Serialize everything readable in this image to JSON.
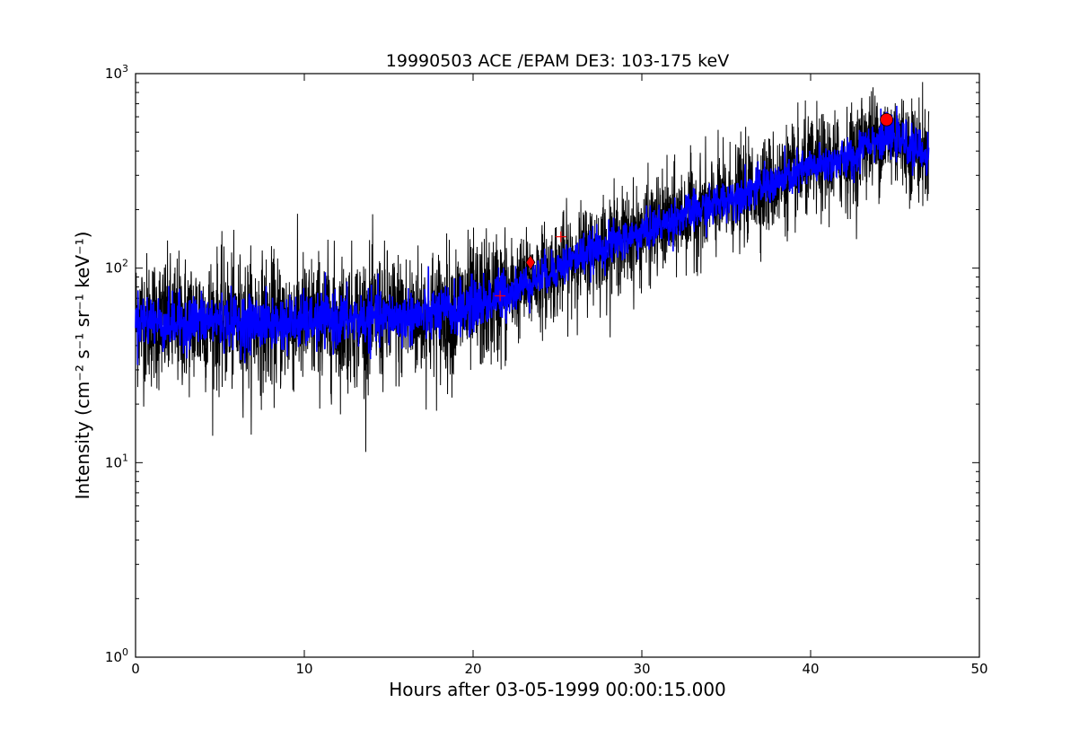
{
  "chart_data": {
    "type": "line",
    "title": "19990503 ACE /EPAM DE3: 103-175 keV",
    "xlabel": "Hours after 03-05-1999 00:00:15.000",
    "ylabel": "Intensity (cm⁻² s⁻¹ sr⁻¹ keV⁻¹)",
    "xlim": [
      0,
      50
    ],
    "ylim": [
      1,
      1000
    ],
    "yscale": "log",
    "grid": false,
    "x_ticks": [
      0,
      10,
      20,
      30,
      40,
      50
    ],
    "x_tick_labels": [
      "0",
      "10",
      "20",
      "30",
      "40",
      "50"
    ],
    "y_ticks": [
      1,
      10,
      100,
      1000
    ],
    "y_tick_labels": [
      {
        "base": "10",
        "exp": "0"
      },
      {
        "base": "10",
        "exp": "1"
      },
      {
        "base": "10",
        "exp": "2"
      },
      {
        "base": "10",
        "exp": "3"
      }
    ],
    "series": [
      {
        "color": "#000000",
        "style": "noisy-line",
        "x": [
          0,
          2,
          4,
          6,
          8,
          10,
          12,
          14,
          16,
          18,
          20,
          21,
          22,
          23,
          24,
          25,
          26,
          27,
          28,
          29,
          30,
          31,
          32,
          33,
          34,
          35,
          36,
          37,
          38,
          39,
          40,
          41,
          42,
          42.8,
          43,
          44,
          45,
          46,
          47
        ],
        "y": [
          55,
          52,
          54,
          53,
          52,
          53,
          54,
          55,
          56,
          58,
          64,
          68,
          74,
          82,
          90,
          100,
          112,
          122,
          132,
          140,
          150,
          165,
          180,
          195,
          205,
          225,
          245,
          260,
          275,
          300,
          330,
          345,
          360,
          375,
          450,
          460,
          470,
          420,
          380
        ]
      },
      {
        "color": "#0000ff",
        "style": "smoothed-line",
        "x": [
          0,
          2,
          4,
          6,
          8,
          10,
          12,
          14,
          16,
          18,
          20,
          21,
          22,
          23,
          24,
          25,
          26,
          27,
          28,
          29,
          30,
          31,
          32,
          33,
          34,
          35,
          36,
          37,
          38,
          39,
          40,
          41,
          42,
          42.8,
          43,
          44,
          45,
          46,
          47
        ],
        "y": [
          55,
          52,
          54,
          53,
          52,
          53,
          54,
          55,
          56,
          58,
          64,
          68,
          74,
          82,
          90,
          100,
          112,
          122,
          132,
          140,
          150,
          165,
          180,
          195,
          205,
          225,
          245,
          260,
          275,
          300,
          330,
          345,
          360,
          375,
          450,
          460,
          470,
          420,
          380
        ]
      }
    ],
    "markers": [
      {
        "type": "plus",
        "x": 21.6,
        "y": 72,
        "color": "#ff0000"
      },
      {
        "type": "diamond",
        "x": 23.4,
        "y": 107,
        "color": "#ff0000"
      },
      {
        "type": "plus",
        "x": 25.2,
        "y": 145,
        "color": "#ff0000"
      },
      {
        "type": "circle",
        "x": 44.5,
        "y": 580,
        "color": "#ff0000"
      }
    ]
  }
}
